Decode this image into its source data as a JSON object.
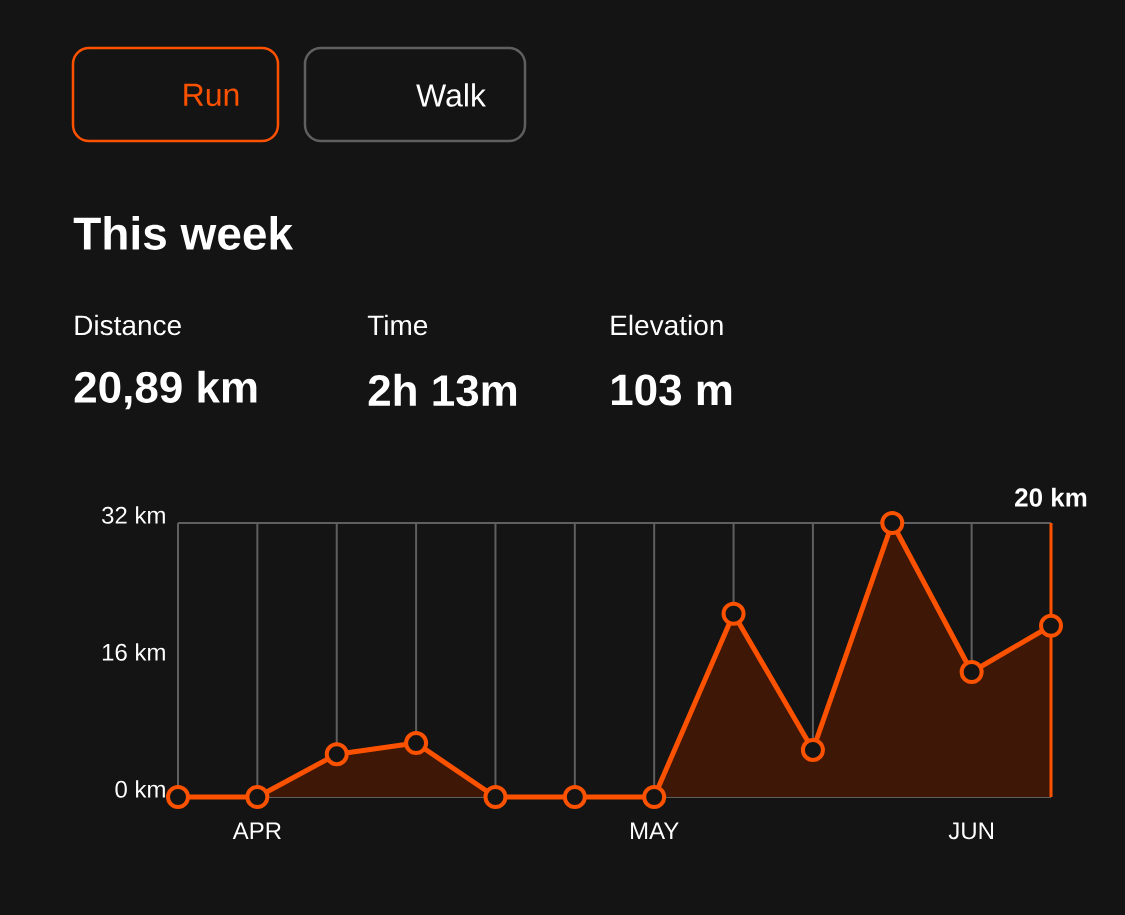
{
  "chart_data": {
    "type": "area",
    "title": "This week",
    "annotations": [
      "Run",
      "Walk",
      "Distance",
      "20,89 km",
      "Time",
      "2h 13m",
      "Elevation",
      "103 m",
      "20 km"
    ],
    "categories": [
      null,
      "APR",
      null,
      null,
      null,
      null,
      "MAY",
      null,
      null,
      null,
      "JUN",
      null
    ],
    "values": [
      0,
      0,
      5,
      6.3,
      0,
      0,
      0,
      21.4,
      5.5,
      32,
      14.6,
      20
    ],
    "color": "#fc5200",
    "ylim": [
      0,
      32
    ],
    "yticks": [
      {
        "value": 0,
        "label": "0 km"
      },
      {
        "value": 16,
        "label": "16 km"
      },
      {
        "value": 32,
        "label": "32 km"
      }
    ],
    "grid": "x",
    "marker": "circle"
  }
}
